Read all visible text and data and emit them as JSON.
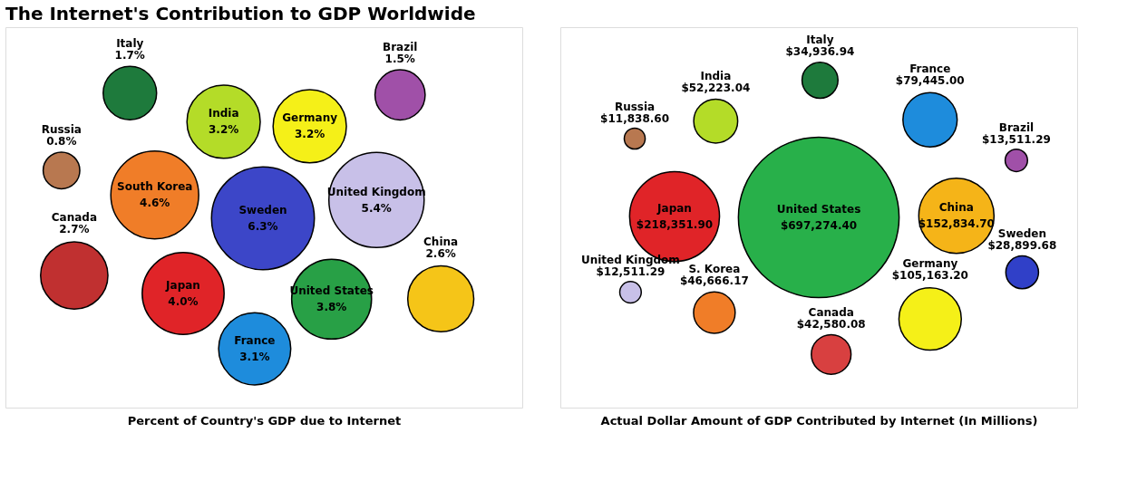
{
  "chart_data": [
    {
      "type": "other",
      "title": "The Internet's Contribution to GDP Worldwide",
      "xlabel": "Percent of Country's GDP due to Internet",
      "categories": [
        "Sweden",
        "China",
        "Japan",
        "Germany",
        "South Korea",
        "Canada",
        "Italy",
        "India",
        "Brazil",
        "United Kingdom",
        "France",
        "United States",
        "Russia"
      ],
      "values": [
        6.3,
        2.6,
        4.0,
        3.2,
        4.6,
        2.7,
        1.7,
        3.2,
        1.5,
        5.4,
        3.1,
        3.8,
        0.8
      ],
      "value_labels": [
        "6.3%",
        "2.6%",
        "4.0%",
        "3.2%",
        "4.6%",
        "2.7%",
        "1.7%",
        "3.2%",
        "1.5%",
        "5.4%",
        "3.1%",
        "3.8%",
        "0.8%"
      ],
      "colors": [
        "#3c46c8",
        "#f5c518",
        "#e02428",
        "#f5f018",
        "#f07d28",
        "#c03030",
        "#1e7a3c",
        "#b4dc28",
        "#a050a8",
        "#c8c0e8",
        "#1e8cdc",
        "#28a046",
        "#b87850"
      ]
    },
    {
      "type": "other",
      "xlabel": "Actual Dollar Amount of GDP Contributed by Internet (In Millions)",
      "categories": [
        "Brazil",
        "Russia",
        "Canada",
        "India",
        "United States",
        "United Kingdom",
        "France",
        "Japan",
        "S. Korea",
        "Germany",
        "China",
        "Italy",
        "Sweden"
      ],
      "values": [
        13511.29,
        11838.6,
        42580.08,
        52223.04,
        697274.4,
        12511.29,
        79445.0,
        218351.9,
        46666.17,
        105163.2,
        152834.7,
        34936.94,
        28899.68
      ],
      "value_labels": [
        "$13,511.29",
        "$11,838.60",
        "$42,580.08",
        "$52,223.04",
        "$697,274.40",
        "$12,511.29",
        "$79,445.00",
        "$218,351.90",
        "$46,666.17",
        "$105,163.20",
        "$152,834.70",
        "$34,936.94",
        "$28,899.68"
      ],
      "colors": [
        "#a050a8",
        "#b87850",
        "#d84040",
        "#b4dc28",
        "#28b04a",
        "#c8c0e8",
        "#1e8cdc",
        "#e02428",
        "#f07d28",
        "#f5f018",
        "#f5b418",
        "#1e7a3c",
        "#3040c8"
      ]
    }
  ]
}
